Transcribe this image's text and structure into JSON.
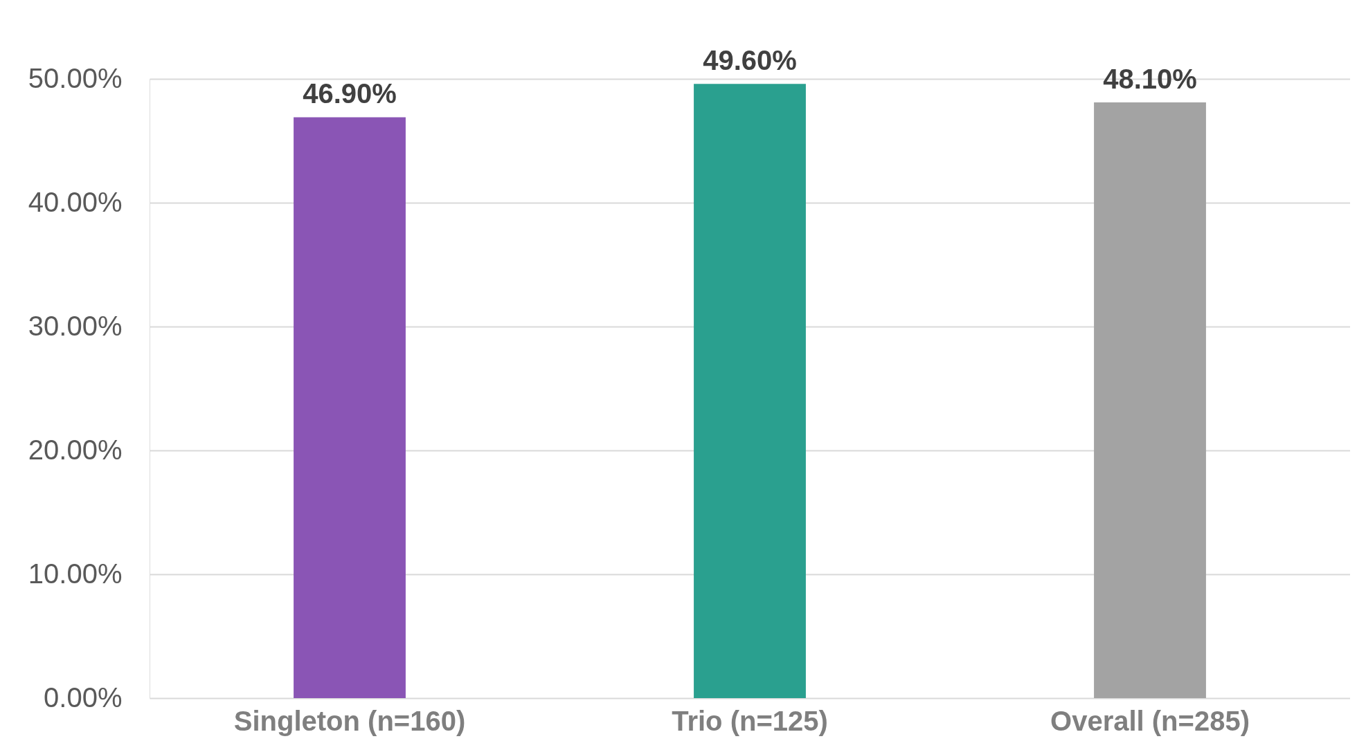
{
  "chart_data": {
    "type": "bar",
    "categories": [
      "Singleton (n=160)",
      "Trio (n=125)",
      "Overall (n=285)"
    ],
    "values": [
      46.9,
      49.6,
      48.1
    ],
    "colors": [
      "#8a55b5",
      "#2aa08f",
      "#a3a3a3"
    ],
    "value_labels": [
      "46.90%",
      "49.60%",
      "48.10%"
    ],
    "ylim": [
      0,
      50
    ],
    "yticks": [
      {
        "value": 0,
        "label": "0.00%"
      },
      {
        "value": 10,
        "label": "10.00%"
      },
      {
        "value": 20,
        "label": "20.00%"
      },
      {
        "value": 30,
        "label": "30.00%"
      },
      {
        "value": 40,
        "label": "40.00%"
      },
      {
        "value": 50,
        "label": "50.00%"
      }
    ],
    "grid": "y",
    "legend": false
  }
}
